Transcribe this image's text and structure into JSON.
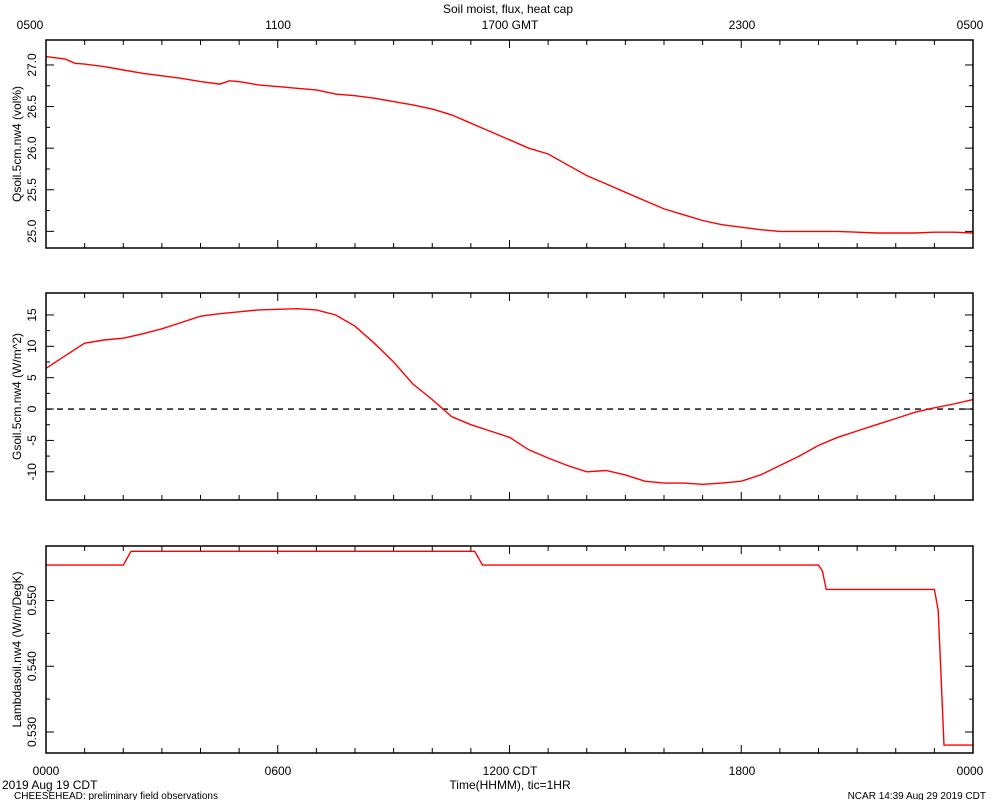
{
  "title": "Soil moist, flux, heat cap",
  "top_axis": {
    "ticks": [
      "0500",
      "1100",
      "1700 GMT",
      "2300",
      "0500"
    ]
  },
  "bottom_axis": {
    "ticks": [
      "0000",
      "0600",
      "1200 CDT",
      "1800",
      "0000"
    ],
    "label": "Time(HHMM), tic=1HR"
  },
  "footer": {
    "date": "2019 Aug 19 CDT",
    "left": "CHEESEHEAD: preliminary field observations",
    "right": "NCAR 14:39 Aug 29 2019 CDT"
  },
  "colors": {
    "series": "#ff0000",
    "axes": "#000000"
  },
  "chart_data": [
    {
      "type": "line",
      "ylabel": "Qsoil.5cm.nw4 (vol%)",
      "x_unit": "hours since 0000 CDT",
      "xlim": [
        0,
        24
      ],
      "ylim": [
        24.8,
        27.3
      ],
      "yticks": [
        25.0,
        25.5,
        26.0,
        26.5,
        27.0
      ],
      "ytick_labels": [
        "25.0",
        "25.5",
        "26.0",
        "26.5",
        "27.0"
      ],
      "series": [
        {
          "x": [
            0,
            0.5,
            0.75,
            1,
            1.5,
            2,
            2.5,
            3,
            3.5,
            4,
            4.5,
            4.75,
            5,
            5.5,
            6,
            6.5,
            7,
            7.5,
            8,
            8.5,
            9,
            9.5,
            10,
            10.5,
            11,
            11.5,
            12,
            12.5,
            13,
            13.5,
            14,
            14.5,
            15,
            15.5,
            16,
            16.5,
            17,
            17.5,
            18,
            18.5,
            19,
            19.5,
            20,
            20.5,
            21,
            21.5,
            22,
            22.5,
            23,
            23.5,
            24
          ],
          "y": [
            27.1,
            27.07,
            27.02,
            27.01,
            26.98,
            26.94,
            26.9,
            26.87,
            26.84,
            26.8,
            26.77,
            26.81,
            26.8,
            26.76,
            26.74,
            26.72,
            26.7,
            26.65,
            26.63,
            26.6,
            26.56,
            26.52,
            26.47,
            26.4,
            26.3,
            26.2,
            26.1,
            26.0,
            25.93,
            25.8,
            25.67,
            25.57,
            25.47,
            25.37,
            25.27,
            25.2,
            25.13,
            25.08,
            25.05,
            25.02,
            25.0,
            25.0,
            25.0,
            25.0,
            24.99,
            24.98,
            24.98,
            24.98,
            24.99,
            24.99,
            24.98
          ]
        }
      ]
    },
    {
      "type": "line",
      "ylabel": "Gsoil.5cm.nw4 (W/m^2)",
      "x_unit": "hours since 0000 CDT",
      "xlim": [
        0,
        24
      ],
      "ylim": [
        -14.5,
        18.5
      ],
      "yticks": [
        -10,
        -5,
        0,
        5,
        10,
        15
      ],
      "ytick_labels": [
        "-10",
        "-5",
        "0",
        "5",
        "10",
        "15"
      ],
      "reference_line": 0,
      "series": [
        {
          "x": [
            0,
            0.5,
            1,
            1.5,
            2,
            2.5,
            3,
            3.5,
            4,
            4.5,
            5,
            5.5,
            6,
            6.5,
            7,
            7.5,
            8,
            8.5,
            9,
            9.5,
            10,
            10.5,
            11,
            11.5,
            12,
            12.5,
            13,
            13.5,
            14,
            14.5,
            15,
            15.5,
            16,
            16.5,
            17,
            17.5,
            18,
            18.5,
            19,
            19.5,
            20,
            20.5,
            21,
            21.5,
            22,
            22.5,
            23,
            23.5,
            24
          ],
          "y": [
            6.5,
            8.5,
            10.5,
            11.0,
            11.3,
            12.0,
            12.8,
            13.8,
            14.8,
            15.2,
            15.5,
            15.8,
            15.9,
            16.0,
            15.8,
            15.0,
            13.2,
            10.5,
            7.5,
            4.0,
            1.5,
            -1.2,
            -2.5,
            -3.5,
            -4.5,
            -6.5,
            -7.8,
            -9.0,
            -10.0,
            -9.8,
            -10.5,
            -11.5,
            -11.8,
            -11.8,
            -12.0,
            -11.8,
            -11.5,
            -10.5,
            -9.0,
            -7.5,
            -5.8,
            -4.5,
            -3.5,
            -2.5,
            -1.5,
            -0.5,
            0.2,
            0.8,
            1.5
          ]
        }
      ]
    },
    {
      "type": "line",
      "ylabel": "Lambdasoil.nw4 (W/m/DegK)",
      "x_unit": "hours since 0000 CDT",
      "xlim": [
        0,
        24
      ],
      "ylim": [
        0.5268,
        0.5583
      ],
      "yticks": [
        0.53,
        0.54,
        0.55
      ],
      "ytick_labels": [
        "0.530",
        "0.540",
        "0.550"
      ],
      "series": [
        {
          "x": [
            0,
            2.0,
            2.2,
            11.1,
            11.3,
            20.0,
            20.1,
            20.2,
            23.0,
            23.1,
            23.25,
            24
          ],
          "y": [
            0.5554,
            0.5554,
            0.5575,
            0.5575,
            0.5554,
            0.5554,
            0.5545,
            0.5517,
            0.5517,
            0.5485,
            0.528,
            0.528
          ]
        }
      ]
    }
  ]
}
